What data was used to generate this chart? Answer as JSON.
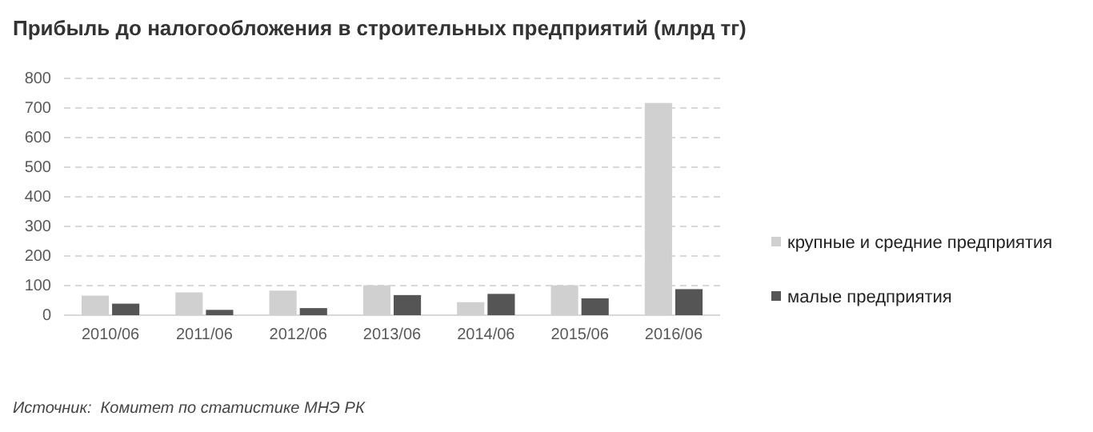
{
  "chart_data": {
    "type": "bar",
    "title": "Прибыль до налогообложения в строительных предприятий (млрд тг)",
    "categories": [
      "2010/06",
      "2011/06",
      "2012/06",
      "2013/06",
      "2014/06",
      "2015/06",
      "2016/06"
    ],
    "series": [
      {
        "name": "крупные и средние предприятия",
        "color": "#d0d0d0",
        "values": [
          66,
          77,
          83,
          101,
          44,
          101,
          717
        ]
      },
      {
        "name": "малые предприятия",
        "color": "#555555",
        "values": [
          39,
          18,
          24,
          68,
          72,
          57,
          88
        ]
      }
    ],
    "ylim": [
      0,
      800
    ],
    "yticks": [
      0,
      100,
      200,
      300,
      400,
      500,
      600,
      700,
      800
    ],
    "grid": "y",
    "line_style": "dashed",
    "legend": "right",
    "annotations": [
      "Источник:  Комитет по статистике МНЭ РК"
    ]
  }
}
